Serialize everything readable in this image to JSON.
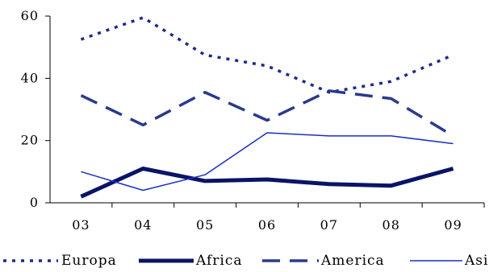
{
  "chart_data": {
    "type": "line",
    "categories": [
      "03",
      "04",
      "05",
      "06",
      "07",
      "08",
      "09"
    ],
    "ylim": [
      0,
      60
    ],
    "yticks": [
      "0",
      "20",
      "40",
      "60"
    ],
    "grid": false,
    "legend_position": "bottom",
    "series": [
      {
        "name": "Europa",
        "values": [
          52.5,
          59.5,
          47.5,
          44,
          35.5,
          39,
          47.5
        ],
        "color": "#1f2a8c",
        "style": "dotted"
      },
      {
        "name": "Africa",
        "values": [
          2,
          11,
          7,
          7.5,
          6,
          5.5,
          11
        ],
        "color": "#0a1466",
        "style": "thick"
      },
      {
        "name": "America",
        "values": [
          34.5,
          25,
          35.5,
          26.5,
          36,
          33.5,
          21.5
        ],
        "color": "#2b3a8c",
        "style": "dashed"
      },
      {
        "name": "Asi",
        "values": [
          10,
          4,
          9,
          22.5,
          21.5,
          21.5,
          19
        ],
        "color": "#1b2fbf",
        "style": "thin"
      }
    ]
  }
}
